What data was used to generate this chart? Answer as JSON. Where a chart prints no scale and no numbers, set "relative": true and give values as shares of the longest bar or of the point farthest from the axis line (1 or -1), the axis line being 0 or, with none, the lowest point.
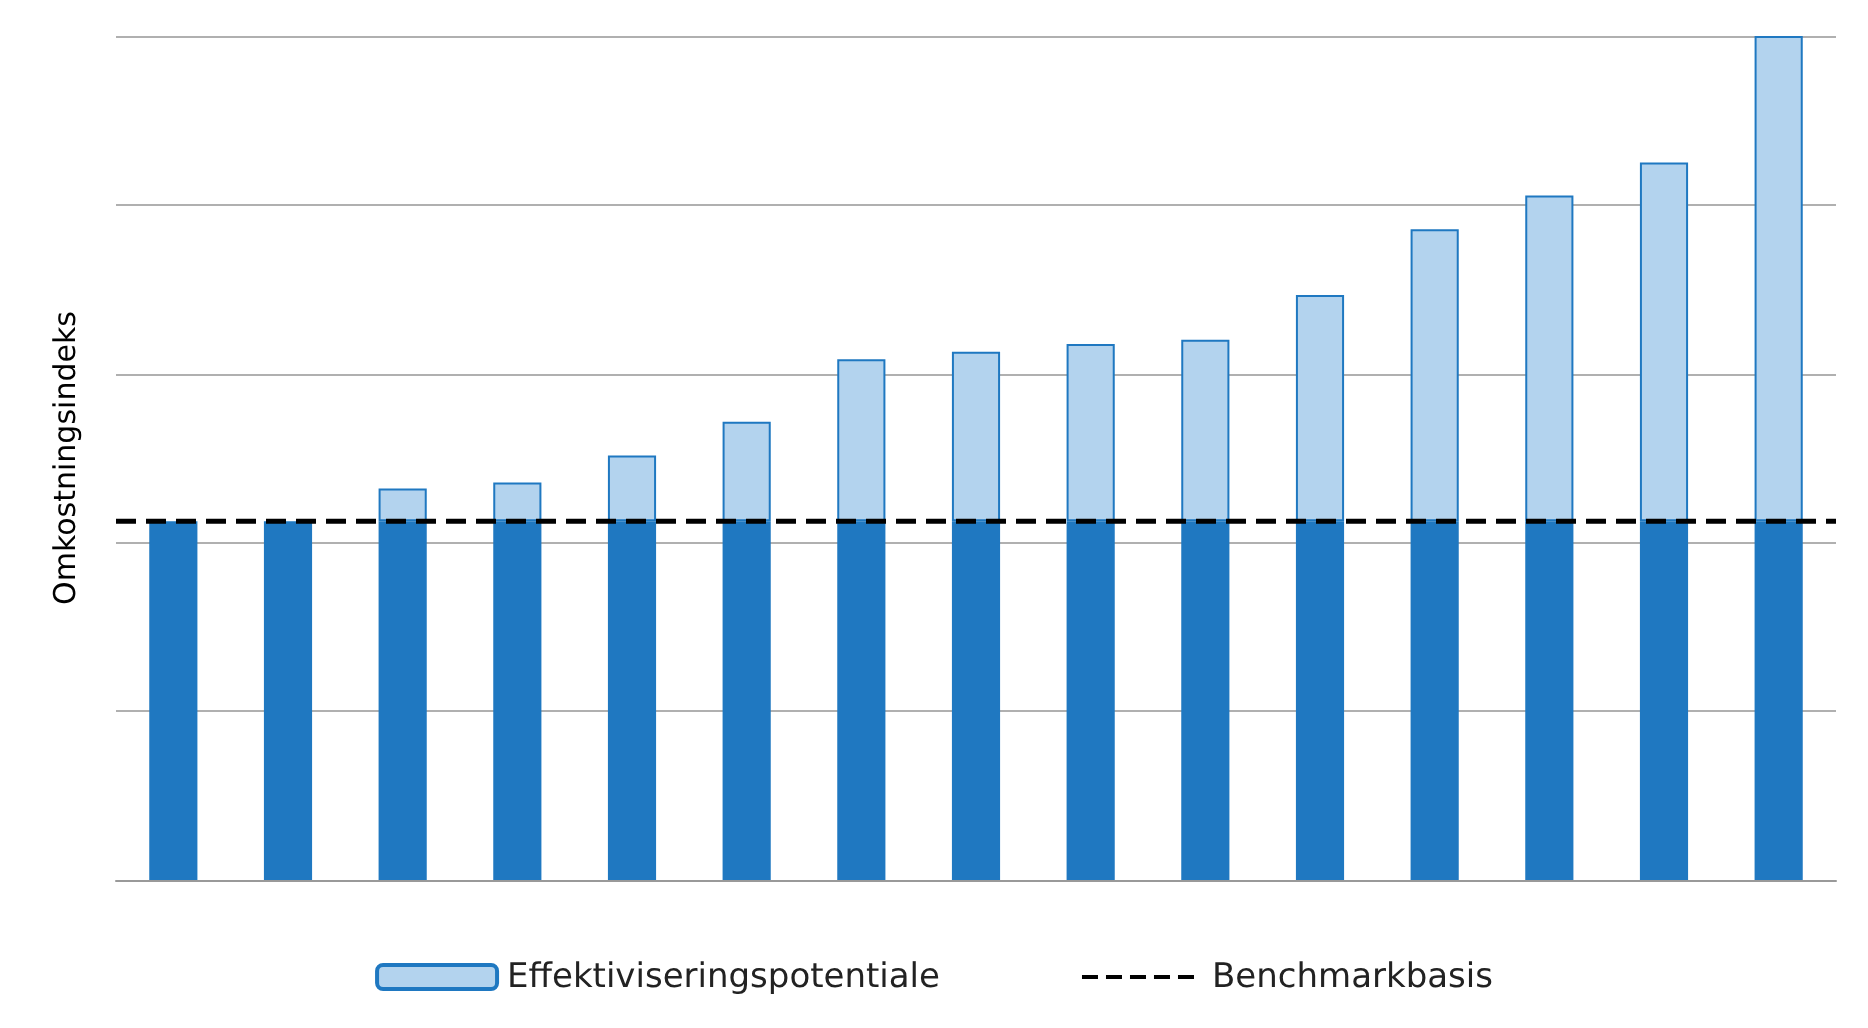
{
  "chart_data": {
    "type": "bar",
    "ylabel": "Omkostningsindeks",
    "relative": true,
    "stacked": true,
    "grid": "y",
    "legend": "bottom",
    "categories": [
      null,
      null,
      null,
      null,
      null,
      null,
      null,
      null,
      null,
      null,
      null,
      null,
      null,
      null,
      null
    ],
    "series": [
      {
        "color": "#1f78c1",
        "values": [
          0.425,
          0.425,
          0.425,
          0.425,
          0.425,
          0.425,
          0.425,
          0.425,
          0.425,
          0.425,
          0.425,
          0.425,
          0.425,
          0.425,
          0.425
        ]
      },
      {
        "name": "Effektiviseringspotentiale",
        "color": "#b3d3ee",
        "values": [
          0,
          0,
          0.039,
          0.046,
          0.078,
          0.118,
          0.192,
          0.201,
          0.21,
          0.215,
          0.268,
          0.346,
          0.386,
          0.425,
          0.575
        ]
      }
    ],
    "ref_lines": [
      {
        "axis": "y",
        "value": 0.425,
        "label": "Benchmarkbasis",
        "color": "#000000",
        "line_style": "dashed"
      }
    ]
  }
}
